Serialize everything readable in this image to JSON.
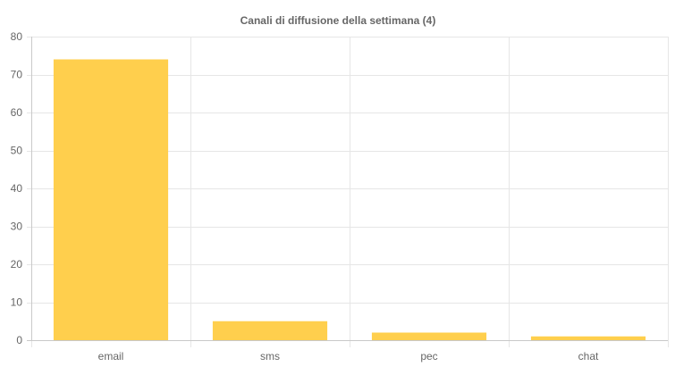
{
  "chart_data": {
    "type": "bar",
    "title": "Canali di diffusione della settimana (4)",
    "categories": [
      "email",
      "sms",
      "pec",
      "chat"
    ],
    "values": [
      74,
      5,
      2,
      1
    ],
    "xlabel": "",
    "ylabel": "",
    "ylim": [
      0,
      80
    ],
    "yticks": [
      0,
      10,
      20,
      30,
      40,
      50,
      60,
      70,
      80
    ],
    "grid": true,
    "legend": "none",
    "bar_color": "#ffcf4d",
    "grid_color": "#e6e6e6",
    "text_color": "#666666"
  }
}
